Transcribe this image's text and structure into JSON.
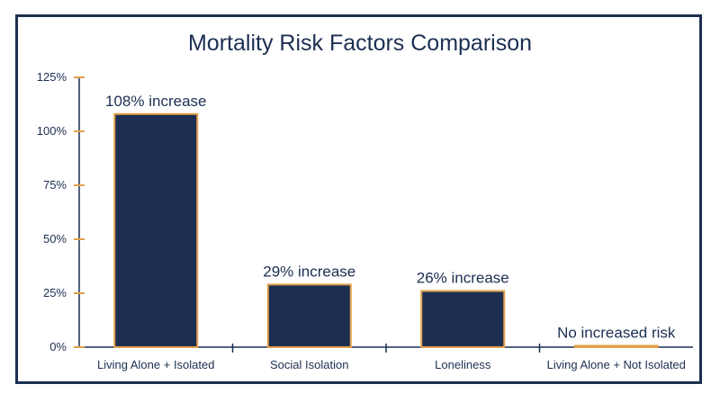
{
  "chart_data": {
    "type": "bar",
    "title": "Mortality Risk Factors Comparison",
    "categories": [
      "Living Alone + Isolated",
      "Social Isolation",
      "Loneliness",
      "Living Alone + Not Isolated"
    ],
    "values": [
      108,
      29,
      26,
      0
    ],
    "data_labels": [
      "108% increase",
      "29% increase",
      "26% increase",
      "No increased risk"
    ],
    "ylim": [
      0,
      125
    ],
    "yticks": [
      0,
      25,
      50,
      75,
      100,
      125
    ],
    "ytick_labels": [
      "0%",
      "25%",
      "50%",
      "75%",
      "100%",
      "125%"
    ],
    "xlabel": "",
    "ylabel": "",
    "grid": false,
    "colors": {
      "bar_fill": "#1c2f52",
      "bar_stroke": "#e2a04a",
      "axis": "#1c2f52",
      "tick_mark": "#e2a04a",
      "text": "#1c2f52"
    }
  }
}
